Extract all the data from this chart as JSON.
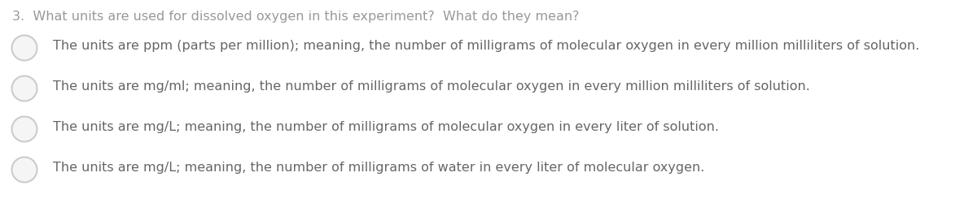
{
  "background_color": "#ffffff",
  "question": "3.  What units are used for dissolved oxygen in this experiment?  What do they mean?",
  "question_color": "#999999",
  "question_fontsize": 11.5,
  "options": [
    "The units are ppm (parts per million); meaning, the number of milligrams of molecular oxygen in every million milliliters of solution.",
    "The units are mg/ml; meaning, the number of milligrams of molecular oxygen in every million milliliters of solution.",
    "The units are mg/L; meaning, the number of milligrams of molecular oxygen in every liter of solution.",
    "The units are mg/L; meaning, the number of milligrams of water in every liter of molecular oxygen."
  ],
  "option_color": "#666666",
  "option_fontsize": 11.5,
  "circle_edge_color": "#cccccc",
  "circle_face_color": "#f5f5f5",
  "fig_width": 12.0,
  "fig_height": 2.51,
  "dpi": 100
}
